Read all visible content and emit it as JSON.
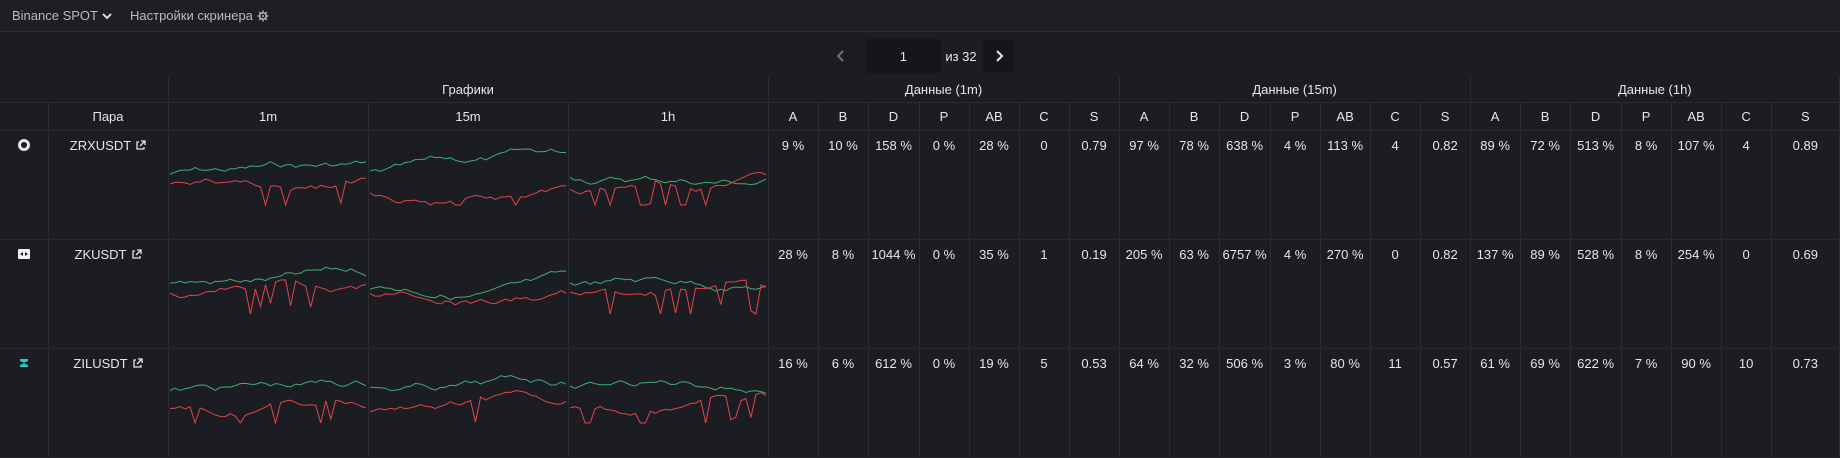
{
  "topbar": {
    "exchange": "Binance SPOT",
    "settings": "Настройки скринера"
  },
  "pager": {
    "current": "1",
    "of_label": "из 32"
  },
  "headers": {
    "charts_group": "Графики",
    "data_1m": "Данные (1m)",
    "data_15m": "Данные (15m)",
    "data_1h": "Данные (1h)",
    "pair": "Пара",
    "tf": [
      "1m",
      "15m",
      "1h"
    ],
    "cols": [
      "A",
      "B",
      "D",
      "P",
      "AB",
      "C",
      "S"
    ]
  },
  "colors": {
    "green": "#3fae72",
    "red": "#e0454a",
    "bg": "#1c1d22"
  },
  "rows": [
    {
      "pair": "ZRXUSDT",
      "icon": "zrx-coin-icon",
      "m1": [
        "9 %",
        "10 %",
        "158 %",
        "0 %",
        "28 %",
        "0",
        "0.79"
      ],
      "m15": [
        "97 %",
        "78 %",
        "638 %",
        "4 %",
        "113 %",
        "4",
        "0.82"
      ],
      "h1": [
        "89 %",
        "72 %",
        "513 %",
        "8 %",
        "107 %",
        "4",
        "0.89"
      ]
    },
    {
      "pair": "ZKUSDT",
      "icon": "zk-coin-icon",
      "m1": [
        "28 %",
        "8 %",
        "1044 %",
        "0 %",
        "35 %",
        "1",
        "0.19"
      ],
      "m15": [
        "205 %",
        "63 %",
        "6757 %",
        "4 %",
        "270 %",
        "0",
        "0.82"
      ],
      "h1": [
        "137 %",
        "89 %",
        "528 %",
        "8 %",
        "254 %",
        "0",
        "0.69"
      ]
    },
    {
      "pair": "ZILUSDT",
      "icon": "zil-coin-icon",
      "m1": [
        "16 %",
        "6 %",
        "612 %",
        "0 %",
        "19 %",
        "5",
        "0.53"
      ],
      "m15": [
        "64 %",
        "32 %",
        "506 %",
        "3 %",
        "80 %",
        "11",
        "0.57"
      ],
      "h1": [
        "61 %",
        "69 %",
        "622 %",
        "7 %",
        "90 %",
        "10",
        "0.73"
      ]
    }
  ]
}
